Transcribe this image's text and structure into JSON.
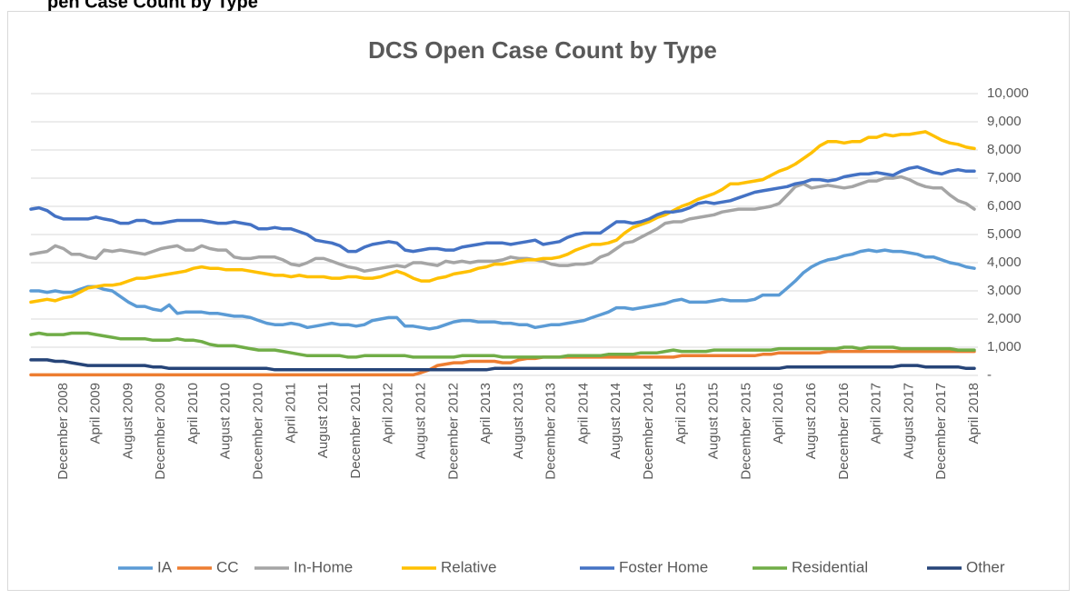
{
  "page_heading": "pen Case Count by Type",
  "chart_data": {
    "type": "line",
    "title": "DCS Open Case Count by Type",
    "categories": [
      null,
      null,
      null,
      null,
      "December 2008",
      null,
      null,
      null,
      "April 2009",
      null,
      null,
      null,
      "August 2009",
      null,
      null,
      null,
      "December 2009",
      null,
      null,
      null,
      "April 2010",
      null,
      null,
      null,
      "August 2010",
      null,
      null,
      null,
      "December 2010",
      null,
      null,
      null,
      "April 2011",
      null,
      null,
      null,
      "August 2011",
      null,
      null,
      null,
      "December 2011",
      null,
      null,
      null,
      "April 2012",
      null,
      null,
      null,
      "August 2012",
      null,
      null,
      null,
      "December 2012",
      null,
      null,
      null,
      "April 2013",
      null,
      null,
      null,
      "August 2013",
      null,
      null,
      null,
      "December 2013",
      null,
      null,
      null,
      "April 2014",
      null,
      null,
      null,
      "August 2014",
      null,
      null,
      null,
      "December 2014",
      null,
      null,
      null,
      "April 2015",
      null,
      null,
      null,
      "August 2015",
      null,
      null,
      null,
      "December 2015",
      null,
      null,
      null,
      "April 2016",
      null,
      null,
      null,
      "August 2016",
      null,
      null,
      null,
      "December 2016",
      null,
      null,
      null,
      "April 2017",
      null,
      null,
      null,
      "August 2017",
      null,
      null,
      null,
      "December 2017",
      null,
      null,
      null,
      "April 2018"
    ],
    "series": [
      {
        "name": "IA",
        "color": "#5b9bd5",
        "values": [
          3000,
          3000,
          2950,
          3000,
          2950,
          2950,
          3050,
          3150,
          3150,
          3050,
          3000,
          2800,
          2600,
          2450,
          2450,
          2350,
          2300,
          2500,
          2200,
          2250,
          2250,
          2250,
          2200,
          2200,
          2150,
          2100,
          2100,
          2050,
          1950,
          1850,
          1800,
          1800,
          1850,
          1800,
          1700,
          1750,
          1800,
          1850,
          1800,
          1800,
          1750,
          1800,
          1950,
          2000,
          2050,
          2050,
          1750,
          1750,
          1700,
          1650,
          1700,
          1800,
          1900,
          1950,
          1950,
          1900,
          1900,
          1900,
          1850,
          1850,
          1800,
          1800,
          1700,
          1750,
          1800,
          1800,
          1850,
          1900,
          1950,
          2050,
          2150,
          2250,
          2400,
          2400,
          2350,
          2400,
          2450,
          2500,
          2550,
          2650,
          2700,
          2600,
          2600,
          2600,
          2650,
          2700,
          2650,
          2650,
          2650,
          2700,
          2850,
          2850,
          2850,
          3100,
          3350,
          3650,
          3850,
          4000,
          4100,
          4150,
          4250,
          4300,
          4400,
          4450,
          4400,
          4450,
          4400,
          4400,
          4350,
          4300,
          4200,
          4200,
          4100,
          4000,
          3950,
          3850,
          3800
        ]
      },
      {
        "name": "CC",
        "color": "#ed7d31",
        "values": [
          20,
          20,
          20,
          20,
          20,
          20,
          20,
          20,
          20,
          20,
          20,
          20,
          20,
          20,
          20,
          20,
          20,
          20,
          20,
          20,
          20,
          20,
          20,
          20,
          20,
          20,
          20,
          20,
          20,
          20,
          20,
          20,
          20,
          20,
          20,
          20,
          20,
          20,
          20,
          20,
          20,
          20,
          20,
          20,
          20,
          20,
          20,
          20,
          100,
          200,
          350,
          400,
          450,
          450,
          500,
          500,
          500,
          500,
          450,
          450,
          550,
          600,
          600,
          650,
          650,
          650,
          650,
          650,
          650,
          650,
          650,
          650,
          650,
          650,
          650,
          650,
          650,
          650,
          650,
          650,
          700,
          700,
          700,
          700,
          700,
          700,
          700,
          700,
          700,
          700,
          750,
          750,
          800,
          800,
          800,
          800,
          800,
          800,
          850,
          850,
          850,
          850,
          850,
          850,
          850,
          850,
          850,
          850,
          850,
          850,
          850,
          850,
          850,
          850,
          850,
          850,
          850
        ]
      },
      {
        "name": "In-Home",
        "color": "#a5a5a5",
        "values": [
          4300,
          4350,
          4400,
          4600,
          4500,
          4300,
          4300,
          4200,
          4150,
          4450,
          4400,
          4450,
          4400,
          4350,
          4300,
          4400,
          4500,
          4550,
          4600,
          4450,
          4450,
          4600,
          4500,
          4450,
          4450,
          4200,
          4150,
          4150,
          4200,
          4200,
          4200,
          4100,
          3950,
          3900,
          4000,
          4150,
          4150,
          4050,
          3950,
          3850,
          3800,
          3700,
          3750,
          3800,
          3850,
          3900,
          3850,
          4000,
          4000,
          3950,
          3900,
          4050,
          4000,
          4050,
          4000,
          4050,
          4050,
          4050,
          4100,
          4200,
          4150,
          4150,
          4100,
          4050,
          3950,
          3900,
          3900,
          3950,
          3950,
          4000,
          4200,
          4300,
          4500,
          4700,
          4750,
          4900,
          5050,
          5200,
          5400,
          5450,
          5450,
          5550,
          5600,
          5650,
          5700,
          5800,
          5850,
          5900,
          5900,
          5900,
          5950,
          6000,
          6100,
          6400,
          6700,
          6800,
          6650,
          6700,
          6750,
          6700,
          6650,
          6700,
          6800,
          6900,
          6900,
          7000,
          7000,
          7050,
          6950,
          6800,
          6700,
          6650,
          6650,
          6400,
          6200,
          6100,
          5900
        ]
      },
      {
        "name": "Relative",
        "color": "#ffc000",
        "values": [
          2600,
          2650,
          2700,
          2650,
          2750,
          2800,
          2950,
          3100,
          3150,
          3200,
          3200,
          3250,
          3350,
          3450,
          3450,
          3500,
          3550,
          3600,
          3650,
          3700,
          3800,
          3850,
          3800,
          3800,
          3750,
          3750,
          3750,
          3700,
          3650,
          3600,
          3550,
          3550,
          3500,
          3550,
          3500,
          3500,
          3500,
          3450,
          3450,
          3500,
          3500,
          3450,
          3450,
          3500,
          3600,
          3700,
          3600,
          3450,
          3350,
          3350,
          3450,
          3500,
          3600,
          3650,
          3700,
          3800,
          3850,
          3950,
          3950,
          4000,
          4050,
          4100,
          4100,
          4150,
          4150,
          4200,
          4300,
          4450,
          4550,
          4650,
          4650,
          4700,
          4800,
          5050,
          5250,
          5350,
          5450,
          5600,
          5700,
          5850,
          6000,
          6100,
          6250,
          6350,
          6450,
          6600,
          6800,
          6800,
          6850,
          6900,
          6950,
          7100,
          7250,
          7350,
          7500,
          7700,
          7900,
          8150,
          8300,
          8300,
          8250,
          8300,
          8300,
          8450,
          8450,
          8550,
          8500,
          8550,
          8550,
          8600,
          8650,
          8500,
          8350,
          8250,
          8200,
          8100,
          8050
        ]
      },
      {
        "name": "Foster Home",
        "color": "#4472c4",
        "values": [
          5900,
          5950,
          5850,
          5650,
          5550,
          5550,
          5550,
          5550,
          5620,
          5550,
          5500,
          5400,
          5400,
          5500,
          5500,
          5400,
          5400,
          5450,
          5500,
          5500,
          5500,
          5500,
          5450,
          5400,
          5400,
          5450,
          5400,
          5350,
          5200,
          5200,
          5250,
          5200,
          5200,
          5100,
          5000,
          4800,
          4750,
          4700,
          4600,
          4400,
          4400,
          4550,
          4650,
          4700,
          4750,
          4700,
          4450,
          4400,
          4450,
          4500,
          4500,
          4450,
          4450,
          4550,
          4600,
          4650,
          4700,
          4700,
          4700,
          4650,
          4700,
          4750,
          4800,
          4650,
          4700,
          4750,
          4900,
          5000,
          5050,
          5050,
          5050,
          5250,
          5450,
          5450,
          5400,
          5450,
          5550,
          5700,
          5800,
          5800,
          5850,
          5950,
          6100,
          6150,
          6100,
          6150,
          6200,
          6300,
          6400,
          6500,
          6550,
          6600,
          6650,
          6700,
          6800,
          6850,
          6950,
          6950,
          6900,
          6950,
          7050,
          7100,
          7150,
          7150,
          7200,
          7150,
          7100,
          7250,
          7350,
          7400,
          7300,
          7200,
          7150,
          7250,
          7300,
          7250,
          7250
        ]
      },
      {
        "name": "Residential",
        "color": "#70ad47",
        "values": [
          1450,
          1500,
          1450,
          1450,
          1450,
          1500,
          1500,
          1500,
          1450,
          1400,
          1350,
          1300,
          1300,
          1300,
          1300,
          1250,
          1250,
          1250,
          1300,
          1250,
          1250,
          1200,
          1100,
          1050,
          1050,
          1050,
          1000,
          950,
          900,
          900,
          900,
          850,
          800,
          750,
          700,
          700,
          700,
          700,
          700,
          650,
          650,
          700,
          700,
          700,
          700,
          700,
          700,
          650,
          650,
          650,
          650,
          650,
          650,
          700,
          700,
          700,
          700,
          700,
          650,
          650,
          650,
          650,
          650,
          650,
          650,
          650,
          700,
          700,
          700,
          700,
          700,
          750,
          750,
          750,
          750,
          800,
          800,
          800,
          850,
          900,
          850,
          850,
          850,
          850,
          900,
          900,
          900,
          900,
          900,
          900,
          900,
          900,
          950,
          950,
          950,
          950,
          950,
          950,
          950,
          950,
          1000,
          1000,
          950,
          1000,
          1000,
          1000,
          1000,
          950,
          950,
          950,
          950,
          950,
          950,
          950,
          900,
          900,
          900
        ]
      },
      {
        "name": "Other",
        "color": "#264478",
        "values": [
          550,
          550,
          550,
          500,
          500,
          450,
          400,
          350,
          350,
          350,
          350,
          350,
          350,
          350,
          350,
          300,
          300,
          250,
          250,
          250,
          250,
          250,
          250,
          250,
          250,
          250,
          250,
          250,
          250,
          250,
          200,
          200,
          200,
          200,
          200,
          200,
          200,
          200,
          200,
          200,
          200,
          200,
          200,
          200,
          200,
          200,
          200,
          200,
          200,
          200,
          200,
          200,
          200,
          200,
          200,
          200,
          200,
          250,
          250,
          250,
          250,
          250,
          250,
          250,
          250,
          250,
          250,
          250,
          250,
          250,
          250,
          250,
          250,
          250,
          250,
          250,
          250,
          250,
          250,
          250,
          250,
          250,
          250,
          250,
          250,
          250,
          250,
          250,
          250,
          250,
          250,
          250,
          250,
          300,
          300,
          300,
          300,
          300,
          300,
          300,
          300,
          300,
          300,
          300,
          300,
          300,
          300,
          350,
          350,
          350,
          300,
          300,
          300,
          300,
          300,
          250,
          250
        ]
      }
    ],
    "ylim": [
      0,
      10000
    ],
    "yticks": [
      {
        "value": 0,
        "label": "-"
      },
      {
        "value": 1000,
        "label": "1,000"
      },
      {
        "value": 2000,
        "label": "2,000"
      },
      {
        "value": 3000,
        "label": "3,000"
      },
      {
        "value": 4000,
        "label": "4,000"
      },
      {
        "value": 5000,
        "label": "5,000"
      },
      {
        "value": 6000,
        "label": "6,000"
      },
      {
        "value": 7000,
        "label": "7,000"
      },
      {
        "value": 8000,
        "label": "8,000"
      },
      {
        "value": 9000,
        "label": "9,000"
      },
      {
        "value": 10000,
        "label": "10,000"
      }
    ],
    "grid": true,
    "legend": "bottom"
  }
}
